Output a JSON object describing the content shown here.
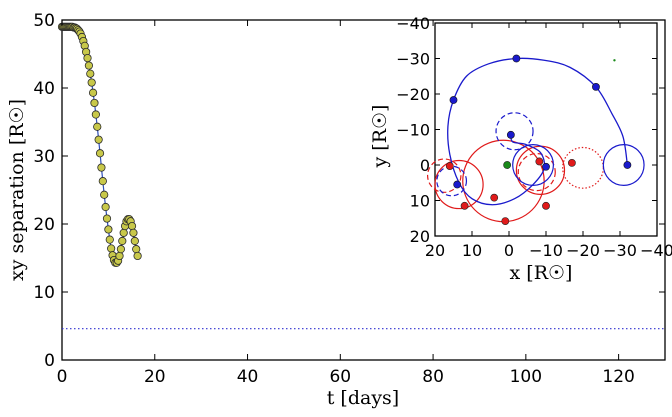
{
  "chart_data": [
    {
      "type": "scatter",
      "xlabel": "t  [days]",
      "ylabel": "xy  separation  [R☉]",
      "xlim": [
        0,
        130
      ],
      "ylim": [
        0,
        50
      ],
      "xticks": [
        0,
        20,
        40,
        60,
        80,
        100,
        120
      ],
      "yticks": [
        0,
        10,
        20,
        30,
        40,
        50
      ],
      "x_tick_labels": [
        "0",
        "20",
        "40",
        "60",
        "80",
        "100",
        "120"
      ],
      "y_tick_labels": [
        "0",
        "10",
        "20",
        "30",
        "40",
        "50"
      ],
      "grid": false,
      "series": [
        {
          "marker": "circle",
          "marker_face": "#c8c84a",
          "marker_edge": "#2a2a2a",
          "line_color": "#2f4fb8",
          "points": [
            [
              0.0,
              49.0
            ],
            [
              0.25,
              49.0
            ],
            [
              0.5,
              49.0
            ],
            [
              0.75,
              49.0
            ],
            [
              1.0,
              49.0
            ],
            [
              1.25,
              49.0
            ],
            [
              1.5,
              49.0
            ],
            [
              1.75,
              49.0
            ],
            [
              2.0,
              49.0
            ],
            [
              2.25,
              49.0
            ],
            [
              2.5,
              48.9
            ],
            [
              2.75,
              48.9
            ],
            [
              3.0,
              48.8
            ],
            [
              3.25,
              48.7
            ],
            [
              3.5,
              48.5
            ],
            [
              3.75,
              48.3
            ],
            [
              4.0,
              48.0
            ],
            [
              4.3,
              47.5
            ],
            [
              4.6,
              46.9
            ],
            [
              4.9,
              46.2
            ],
            [
              5.2,
              45.3
            ],
            [
              5.5,
              44.4
            ],
            [
              5.8,
              43.3
            ],
            [
              6.1,
              42.1
            ],
            [
              6.4,
              40.8
            ],
            [
              6.7,
              39.3
            ],
            [
              7.0,
              37.8
            ],
            [
              7.3,
              36.1
            ],
            [
              7.6,
              34.3
            ],
            [
              7.9,
              32.4
            ],
            [
              8.2,
              30.4
            ],
            [
              8.5,
              28.3
            ],
            [
              8.8,
              26.3
            ],
            [
              9.1,
              24.3
            ],
            [
              9.4,
              22.5
            ],
            [
              9.7,
              20.8
            ],
            [
              10.0,
              19.2
            ],
            [
              10.3,
              17.7
            ],
            [
              10.6,
              16.4
            ],
            [
              10.9,
              15.4
            ],
            [
              11.2,
              14.7
            ],
            [
              11.5,
              14.3
            ],
            [
              11.8,
              14.3
            ],
            [
              12.1,
              14.6
            ],
            [
              12.4,
              15.3
            ],
            [
              12.7,
              16.3
            ],
            [
              13.0,
              17.5
            ],
            [
              13.3,
              18.7
            ],
            [
              13.6,
              19.7
            ],
            [
              13.9,
              20.4
            ],
            [
              14.2,
              20.7
            ],
            [
              14.5,
              20.7
            ],
            [
              14.8,
              20.4
            ],
            [
              15.1,
              19.7
            ],
            [
              15.4,
              18.7
            ],
            [
              15.7,
              17.5
            ],
            [
              16.0,
              16.3
            ],
            [
              16.3,
              15.3
            ]
          ]
        }
      ],
      "reference_lines": [
        {
          "type": "horizontal",
          "y": 4.6,
          "style": "dotted",
          "color": "#3030d0"
        }
      ]
    },
    {
      "type": "scatter",
      "subtype": "orbit-inset",
      "xlabel": "x  [R☉]",
      "ylabel": "y  [R☉]",
      "xlim": [
        20,
        -40
      ],
      "ylim": [
        20,
        -40
      ],
      "xticks": [
        20,
        10,
        0,
        -10,
        -20,
        -30,
        -40
      ],
      "yticks": [
        -40,
        -30,
        -20,
        -10,
        0,
        10,
        20
      ],
      "x_tick_labels": [
        "20",
        "10",
        "0",
        "−10",
        "−20",
        "−30",
        "−40"
      ],
      "y_tick_labels": [
        "−40",
        "−30",
        "−20",
        "−10",
        "0",
        "10",
        "20"
      ],
      "grid": false,
      "colors": {
        "blue": "#1a1acc",
        "red": "#e01a1a",
        "green": "#1a8a1a"
      },
      "center_point": [
        0.5,
        0.0
      ],
      "stray_point": [
        -28.5,
        -29.5
      ],
      "blue_track": [
        [
          -32.0,
          0.0
        ],
        [
          -30.8,
          -8.0
        ],
        [
          -27.8,
          -14.5
        ],
        [
          -23.5,
          -22.0
        ],
        [
          -16.5,
          -27.5
        ],
        [
          -9.5,
          -29.5
        ],
        [
          -2.0,
          -30.0
        ],
        [
          5.5,
          -28.5
        ],
        [
          11.5,
          -25.0
        ],
        [
          15.0,
          -18.3
        ],
        [
          16.5,
          -11.0
        ],
        [
          16.0,
          -3.0
        ],
        [
          13.5,
          5.0
        ],
        [
          10.0,
          9.5
        ],
        [
          4.5,
          11.2
        ],
        [
          -1.5,
          9.5
        ],
        [
          -6.5,
          5.5
        ],
        [
          -9.5,
          1.0
        ],
        [
          -8.5,
          -3.5
        ],
        [
          -4.5,
          -5.8
        ],
        [
          -1.0,
          -6.5
        ],
        [
          -0.5,
          -8.5
        ]
      ],
      "blue_markers": [
        [
          -32.0,
          0.0
        ],
        [
          -23.5,
          -22.0
        ],
        [
          -2.0,
          -30.0
        ],
        [
          15.0,
          -18.3
        ],
        [
          -0.5,
          -8.5
        ],
        [
          -10.0,
          0.5
        ],
        [
          14.0,
          5.5
        ]
      ],
      "blue_solid_circles": [
        {
          "center": [
            -31.0,
            0.0
          ],
          "r": 5.5
        },
        {
          "center": [
            -6.5,
            0.0
          ],
          "r": 5.5
        }
      ],
      "blue_dashed_circles": [
        {
          "center": [
            -1.5,
            -9.5
          ],
          "r": 5.0
        },
        {
          "center": [
            15.5,
            4.5
          ],
          "r": 4.0
        }
      ],
      "red_solid_circles": [
        {
          "center": [
            1.5,
            4.5
          ],
          "r": 11.0
        },
        {
          "center": [
            -8.5,
            1.5
          ],
          "r": 6.5
        },
        {
          "center": [
            13.5,
            5.5
          ],
          "r": 6.5
        }
      ],
      "red_dashed_circles": [
        {
          "center": [
            -7.5,
            2.0
          ],
          "r": 5.0
        },
        {
          "center": [
            17.5,
            3.0
          ],
          "r": 4.5
        }
      ],
      "red_dotted_circles": [
        {
          "center": [
            -20.0,
            0.8
          ],
          "r": 5.5
        }
      ],
      "red_markers": [
        [
          16.0,
          0.3
        ],
        [
          12.0,
          11.5
        ],
        [
          4.0,
          9.2
        ],
        [
          -10.0,
          11.5
        ],
        [
          -8.2,
          -1.0
        ],
        [
          -17.0,
          -0.6
        ],
        [
          1.0,
          15.8
        ]
      ]
    }
  ]
}
